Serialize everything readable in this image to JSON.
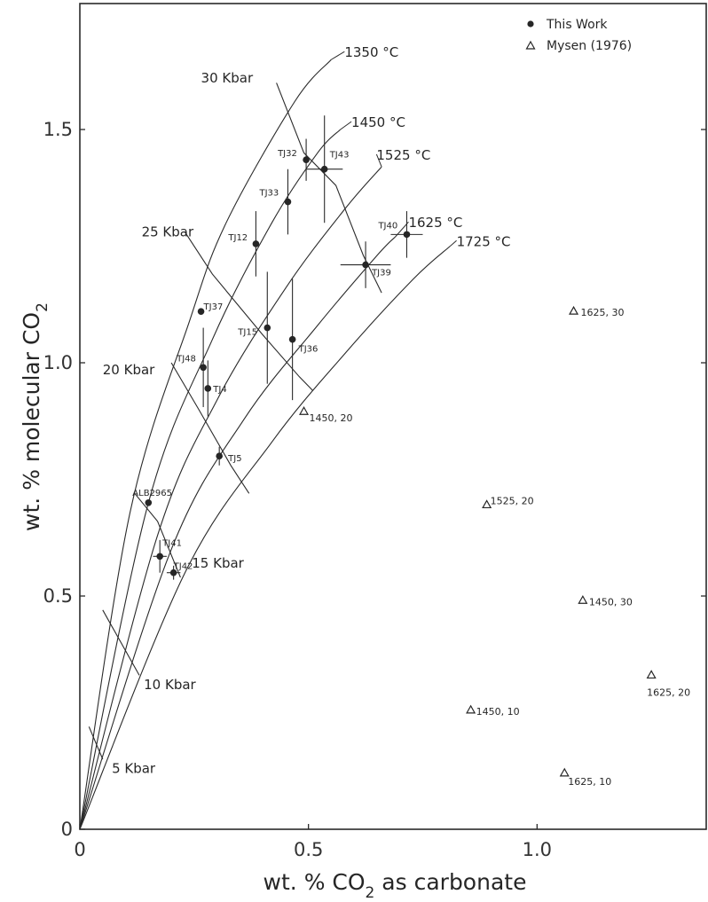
{
  "chart_data": {
    "type": "scatter",
    "xlabel_main": "wt. % CO",
    "xlabel_sub": "2",
    "xlabel_rest": " as carbonate",
    "ylabel_main": "wt. % molecular CO",
    "ylabel_sub": "2",
    "xlim": [
      0,
      1.37
    ],
    "ylim": [
      0,
      1.77
    ],
    "x_ticks": [
      {
        "value": 0,
        "label": "0"
      },
      {
        "value": 0.5,
        "label": "0.5"
      },
      {
        "value": 1.0,
        "label": "1.0"
      }
    ],
    "y_ticks": [
      {
        "value": 0,
        "label": "0"
      },
      {
        "value": 0.5,
        "label": "0.5"
      },
      {
        "value": 1.0,
        "label": "1.0"
      },
      {
        "value": 1.5,
        "label": "1.5"
      }
    ],
    "legend": {
      "placement": "top-right",
      "entries": [
        {
          "marker": "circle",
          "label": "This Work"
        },
        {
          "marker": "triangle",
          "label": "Mysen (1976)"
        }
      ]
    },
    "series": [
      {
        "name": "This Work",
        "marker": "circle",
        "points": [
          {
            "label": "TJ32",
            "x": 0.495,
            "y": 1.435,
            "yerr": 0.045,
            "xerr": 0
          },
          {
            "label": "TJ43",
            "x": 0.535,
            "y": 1.415,
            "yerr": 0.115,
            "xerr": 0.04
          },
          {
            "label": "TJ33",
            "x": 0.455,
            "y": 1.345,
            "yerr": 0.07,
            "xerr": 0
          },
          {
            "label": "TJ12",
            "x": 0.385,
            "y": 1.255,
            "yerr": 0.07,
            "xerr": 0
          },
          {
            "label": "TJ40",
            "x": 0.715,
            "y": 1.275,
            "yerr": 0.05,
            "xerr": 0.035
          },
          {
            "label": "TJ39",
            "x": 0.625,
            "y": 1.21,
            "yerr": 0.05,
            "xerr": 0.055
          },
          {
            "label": "TJ37",
            "x": 0.265,
            "y": 1.11,
            "yerr": 0,
            "xerr": 0
          },
          {
            "label": "TJ15",
            "x": 0.41,
            "y": 1.075,
            "yerr": 0.12,
            "xerr": 0
          },
          {
            "label": "TJ36",
            "x": 0.465,
            "y": 1.05,
            "yerr": 0.13,
            "xerr": 0
          },
          {
            "label": "TJ48",
            "x": 0.27,
            "y": 0.99,
            "yerr": 0.085,
            "xerr": 0
          },
          {
            "label": "TJ4",
            "x": 0.28,
            "y": 0.945,
            "yerr": 0.06,
            "xerr": 0
          },
          {
            "label": "TJ5",
            "x": 0.305,
            "y": 0.8,
            "yerr": 0.02,
            "xerr": 0
          },
          {
            "label": "ALB2965",
            "x": 0.15,
            "y": 0.7,
            "yerr": 0,
            "xerr": 0
          },
          {
            "label": "TJ41",
            "x": 0.175,
            "y": 0.585,
            "yerr": 0.035,
            "xerr": 0.015
          },
          {
            "label": "TJ42",
            "x": 0.205,
            "y": 0.55,
            "yerr": 0.015,
            "xerr": 0.015
          }
        ]
      },
      {
        "name": "Mysen (1976)",
        "marker": "triangle",
        "points": [
          {
            "label": "1625, 30",
            "x": 1.08,
            "y": 1.11
          },
          {
            "label": "1450, 20",
            "x": 0.49,
            "y": 0.895
          },
          {
            "label": "1525, 20",
            "x": 0.89,
            "y": 0.695
          },
          {
            "label": "1450, 30",
            "x": 1.1,
            "y": 0.49
          },
          {
            "label": "1625, 20",
            "x": 1.25,
            "y": 0.33
          },
          {
            "label": "1450, 10",
            "x": 0.855,
            "y": 0.255
          },
          {
            "label": "1625, 10",
            "x": 1.06,
            "y": 0.12
          }
        ]
      }
    ],
    "isotherms": [
      {
        "label": "1350 °C",
        "points": [
          [
            0,
            0
          ],
          [
            0.11,
            0.68
          ],
          [
            0.24,
            1.09
          ],
          [
            0.32,
            1.3
          ],
          [
            0.47,
            1.56
          ],
          [
            0.55,
            1.65
          ]
        ]
      },
      {
        "label": "1450 °C",
        "points": [
          [
            0,
            0
          ],
          [
            0.15,
            0.7
          ],
          [
            0.29,
            1.05
          ],
          [
            0.42,
            1.3
          ],
          [
            0.52,
            1.45
          ],
          [
            0.57,
            1.5
          ]
        ]
      },
      {
        "label": "1525 °C",
        "points": [
          [
            0,
            0
          ],
          [
            0.17,
            0.63
          ],
          [
            0.3,
            0.92
          ],
          [
            0.45,
            1.16
          ],
          [
            0.58,
            1.33
          ],
          [
            0.66,
            1.42
          ]
        ]
      },
      {
        "label": "1625 °C",
        "points": [
          [
            0,
            0
          ],
          [
            0.2,
            0.6
          ],
          [
            0.36,
            0.88
          ],
          [
            0.52,
            1.08
          ],
          [
            0.65,
            1.23
          ],
          [
            0.69,
            1.27
          ]
        ]
      },
      {
        "label": "1725 °C",
        "points": [
          [
            0,
            0
          ],
          [
            0.23,
            0.55
          ],
          [
            0.42,
            0.83
          ],
          [
            0.58,
            1.02
          ],
          [
            0.73,
            1.18
          ],
          [
            0.81,
            1.25
          ]
        ]
      }
    ],
    "isobars": [
      {
        "label": "30 Kbar",
        "points": [
          [
            0.43,
            1.6
          ],
          [
            0.49,
            1.45
          ],
          [
            0.56,
            1.38
          ],
          [
            0.62,
            1.23
          ],
          [
            0.66,
            1.15
          ]
        ]
      },
      {
        "label": "25 Kbar",
        "points": [
          [
            0.23,
            1.28
          ],
          [
            0.29,
            1.19
          ],
          [
            0.4,
            1.06
          ],
          [
            0.48,
            0.97
          ],
          [
            0.51,
            0.94
          ]
        ]
      },
      {
        "label": "20 Kbar",
        "points": [
          [
            0.2,
            1.0
          ],
          [
            0.26,
            0.9
          ],
          [
            0.33,
            0.78
          ],
          [
            0.37,
            0.72
          ]
        ]
      },
      {
        "label": "15 Kbar",
        "points": [
          [
            0.12,
            0.72
          ],
          [
            0.17,
            0.66
          ],
          [
            0.22,
            0.54
          ]
        ]
      },
      {
        "label": "10 Kbar",
        "points": [
          [
            0.05,
            0.47
          ],
          [
            0.13,
            0.33
          ]
        ]
      },
      {
        "label": "5 Kbar",
        "points": [
          [
            0.02,
            0.22
          ],
          [
            0.05,
            0.15
          ]
        ]
      }
    ],
    "isotherm_label_anchor": [
      {
        "label": "1350 °C",
        "x": 0.575,
        "y": 1.665
      },
      {
        "label": "1450 °C",
        "x": 0.59,
        "y": 1.515
      },
      {
        "label": "1525 °C",
        "x": 0.645,
        "y": 1.445
      },
      {
        "label": "1625 °C",
        "x": 0.715,
        "y": 1.3
      },
      {
        "label": "1725 °C",
        "x": 0.82,
        "y": 1.26
      }
    ],
    "isobar_label_anchor": [
      {
        "label": "30 Kbar",
        "x": 0.265,
        "y": 1.61
      },
      {
        "label": "25 Kbar",
        "x": 0.135,
        "y": 1.28
      },
      {
        "label": "20 Kbar",
        "x": 0.05,
        "y": 0.985
      },
      {
        "label": "15 Kbar",
        "x": 0.245,
        "y": 0.57
      },
      {
        "label": "10 Kbar",
        "x": 0.14,
        "y": 0.31
      },
      {
        "label": "5 Kbar",
        "x": 0.07,
        "y": 0.13
      }
    ]
  }
}
